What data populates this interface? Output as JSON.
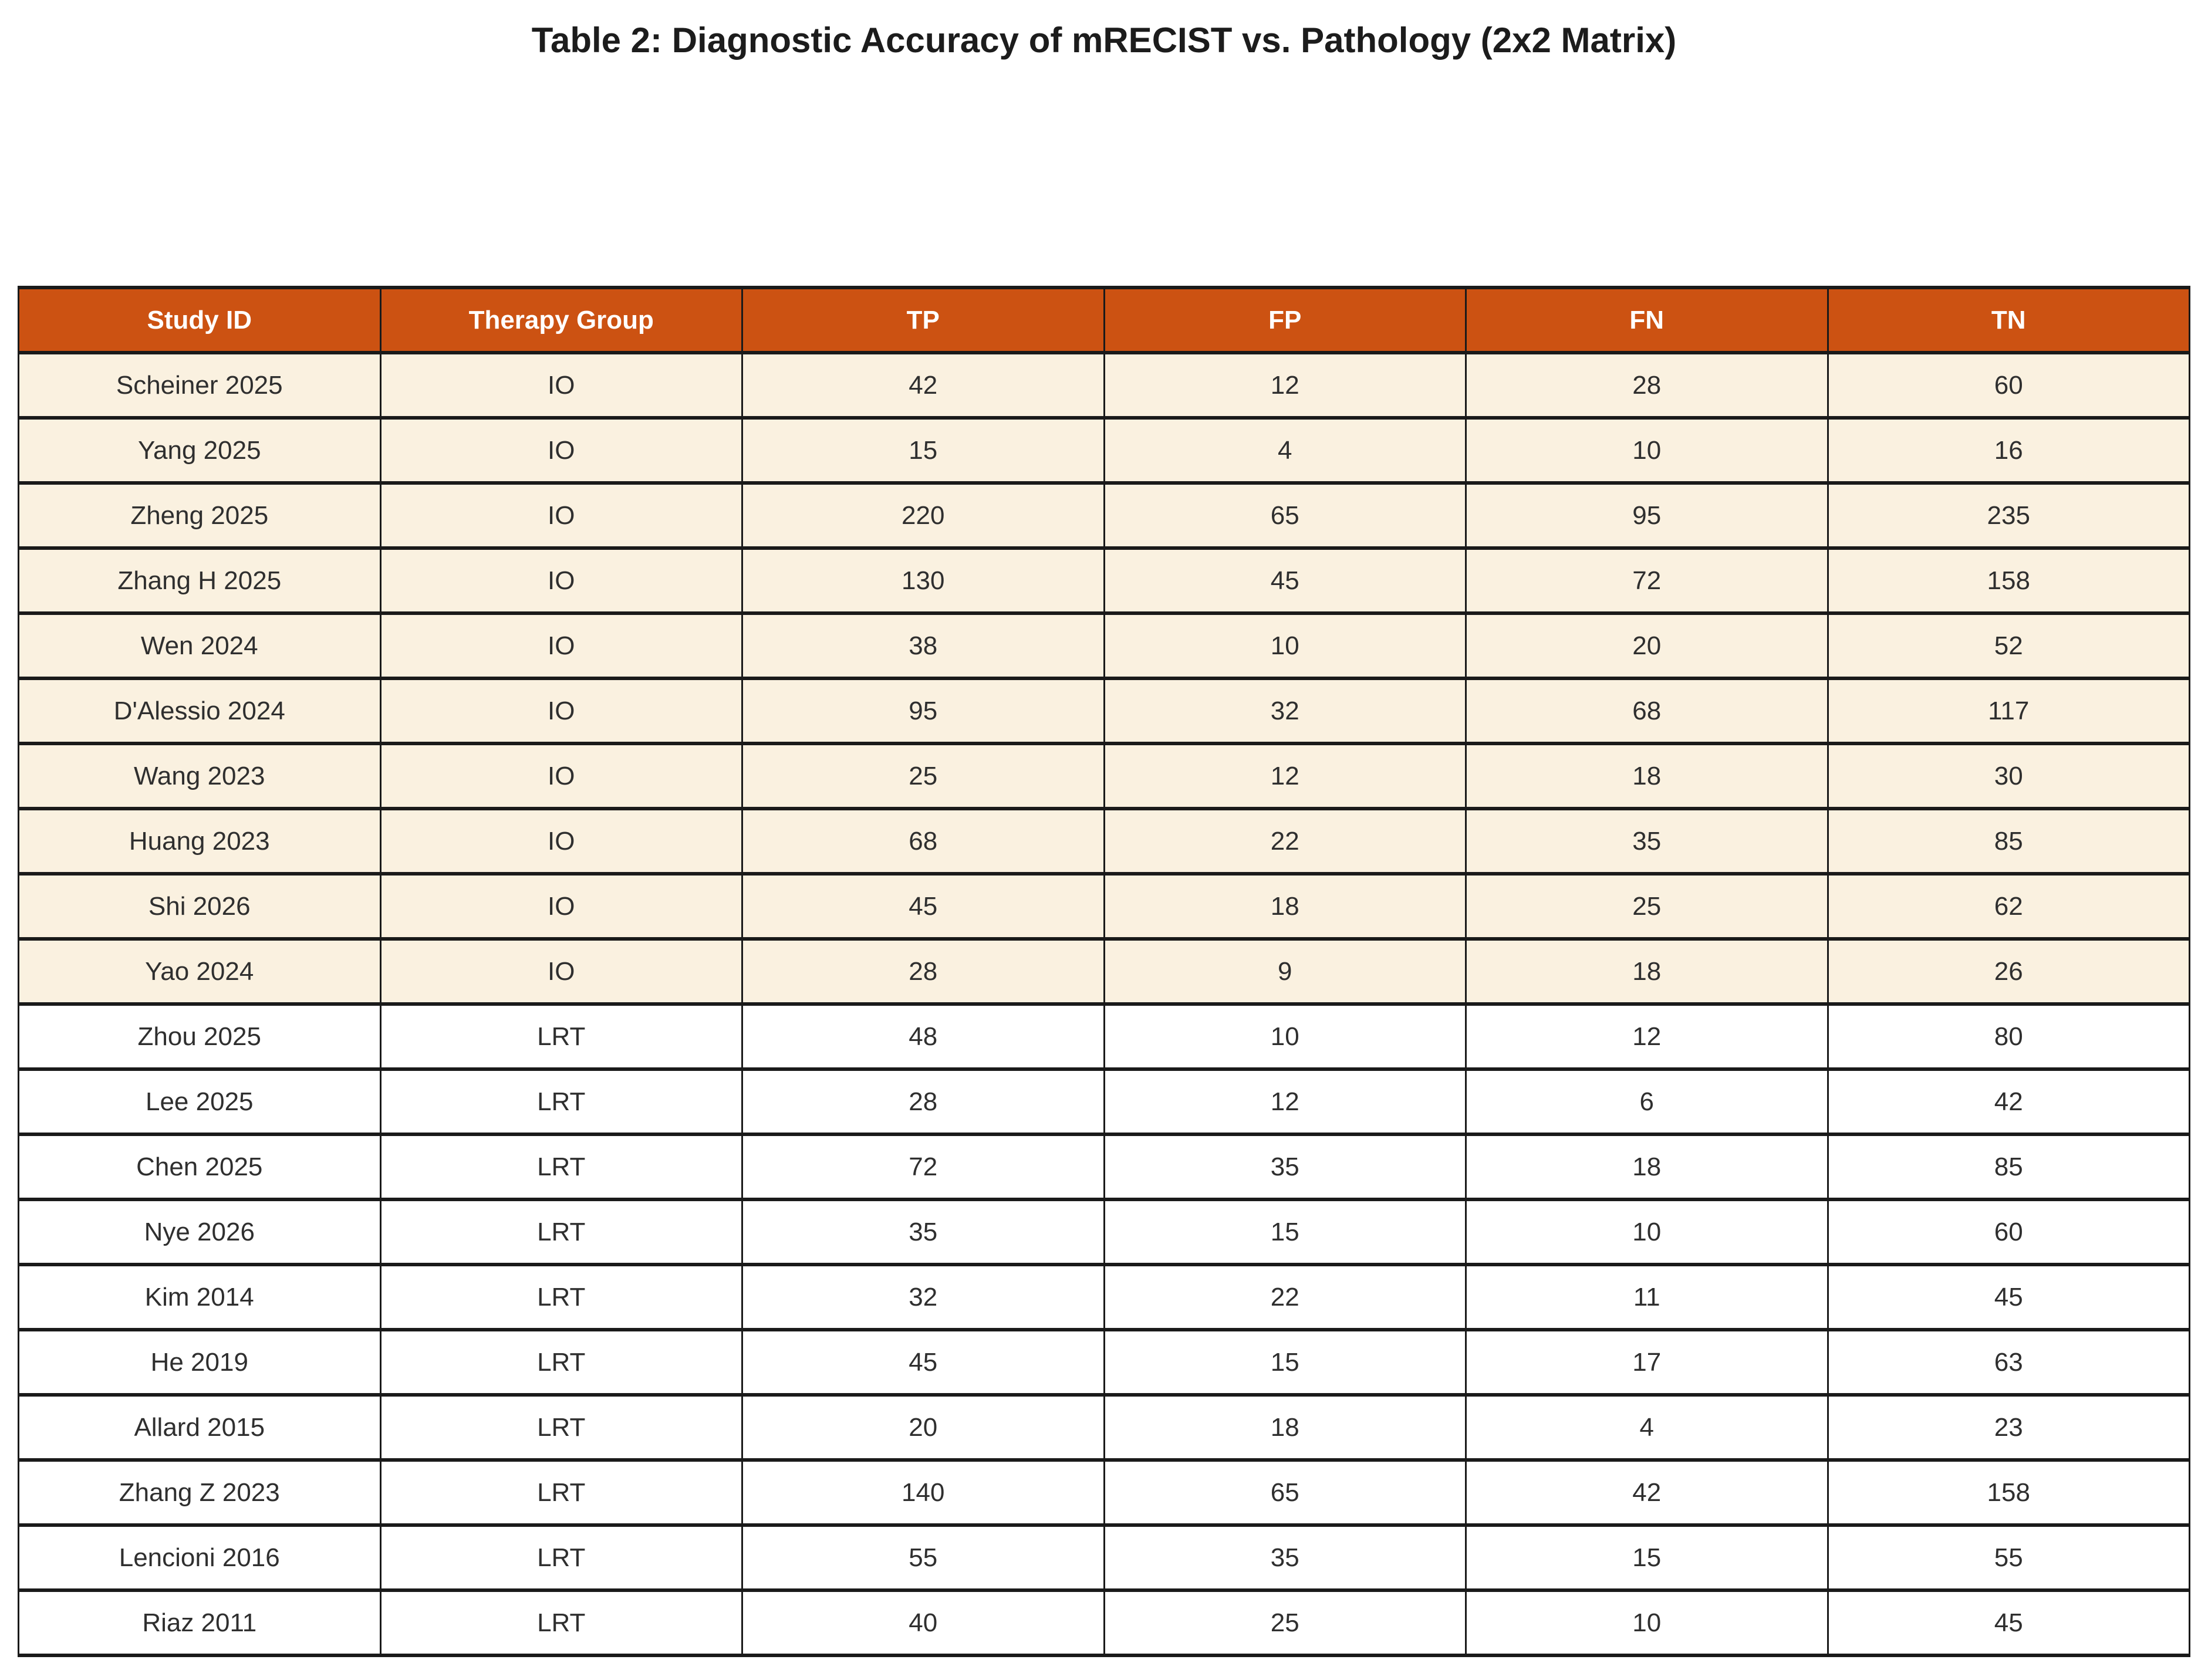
{
  "title": "Table 2: Diagnostic Accuracy of mRECIST vs. Pathology (2x2 Matrix)",
  "table": {
    "columns": [
      "Study ID",
      "Therapy Group",
      "TP",
      "FP",
      "FN",
      "TN"
    ],
    "rows": [
      [
        "Scheiner 2025",
        "IO",
        "42",
        "12",
        "28",
        "60"
      ],
      [
        "Yang 2025",
        "IO",
        "15",
        "4",
        "10",
        "16"
      ],
      [
        "Zheng 2025",
        "IO",
        "220",
        "65",
        "95",
        "235"
      ],
      [
        "Zhang H 2025",
        "IO",
        "130",
        "45",
        "72",
        "158"
      ],
      [
        "Wen 2024",
        "IO",
        "38",
        "10",
        "20",
        "52"
      ],
      [
        "D'Alessio 2024",
        "IO",
        "95",
        "32",
        "68",
        "117"
      ],
      [
        "Wang 2023",
        "IO",
        "25",
        "12",
        "18",
        "30"
      ],
      [
        "Huang 2023",
        "IO",
        "68",
        "22",
        "35",
        "85"
      ],
      [
        "Shi 2026",
        "IO",
        "45",
        "18",
        "25",
        "62"
      ],
      [
        "Yao 2024",
        "IO",
        "28",
        "9",
        "18",
        "26"
      ],
      [
        "Zhou 2025",
        "LRT",
        "48",
        "10",
        "12",
        "80"
      ],
      [
        "Lee 2025",
        "LRT",
        "28",
        "12",
        "6",
        "42"
      ],
      [
        "Chen 2025",
        "LRT",
        "72",
        "35",
        "18",
        "85"
      ],
      [
        "Nye 2026",
        "LRT",
        "35",
        "15",
        "10",
        "60"
      ],
      [
        "Kim 2014",
        "LRT",
        "32",
        "22",
        "11",
        "45"
      ],
      [
        "He 2019",
        "LRT",
        "45",
        "15",
        "17",
        "63"
      ],
      [
        "Allard 2015",
        "LRT",
        "20",
        "18",
        "4",
        "23"
      ],
      [
        "Zhang Z 2023",
        "LRT",
        "140",
        "65",
        "42",
        "158"
      ],
      [
        "Lencioni 2016",
        "LRT",
        "55",
        "35",
        "15",
        "55"
      ],
      [
        "Riaz 2011",
        "LRT",
        "40",
        "25",
        "10",
        "45"
      ]
    ],
    "group_colors": {
      "IO": "#FAF1E0",
      "LRT": "#FFFFFF"
    }
  },
  "colors": {
    "header_bg": "#CC5212",
    "header_text": "#FFFFFF",
    "border": "#1A1A1A",
    "cell_text": "#2F2F2F",
    "title_color": "#1C1C1C"
  }
}
